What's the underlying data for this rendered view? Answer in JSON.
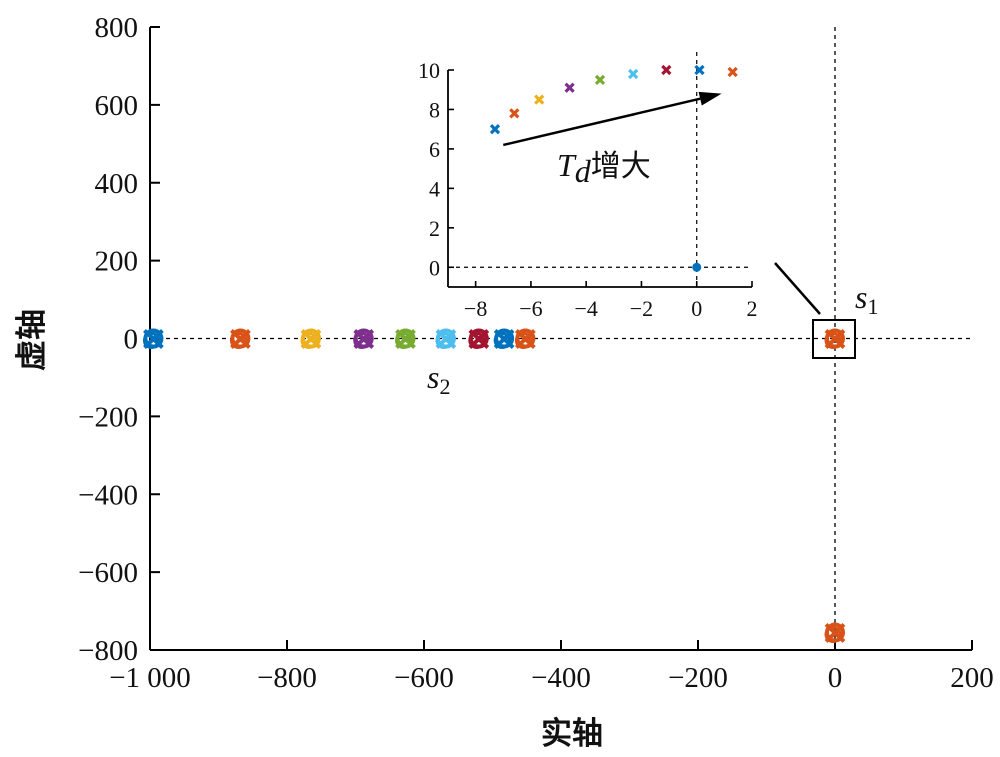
{
  "chart_data": {
    "type": "scatter",
    "xlabel": "实轴",
    "ylabel": "虚轴",
    "xlim": [
      -1000,
      200
    ],
    "ylim": [
      -800,
      800
    ],
    "xticks": [
      -1000,
      -800,
      -600,
      -400,
      -200,
      0,
      200
    ],
    "xtick_labels": [
      "−1 000",
      "−800",
      "−600",
      "−400",
      "−200",
      "0",
      "200"
    ],
    "yticks": [
      800,
      600,
      400,
      200,
      0,
      -200,
      -400,
      -600,
      -800
    ],
    "ytick_labels": [
      "800",
      "600",
      "400",
      "200",
      "0",
      "−200",
      "−400",
      "−600",
      "−800"
    ],
    "reference_lines": {
      "y": 0,
      "x": 0
    },
    "clusters": [
      {
        "x": -995,
        "y": 0,
        "color": "#0072BD"
      },
      {
        "x": -868,
        "y": 0,
        "color": "#D95319"
      },
      {
        "x": -765,
        "y": 0,
        "color": "#EDB120"
      },
      {
        "x": -688,
        "y": 0,
        "color": "#7E2F8E"
      },
      {
        "x": -627,
        "y": 0,
        "color": "#77AC30"
      },
      {
        "x": -568,
        "y": 0,
        "color": "#4DBEEE"
      },
      {
        "x": -520,
        "y": 0,
        "color": "#A2142F"
      },
      {
        "x": -483,
        "y": 0,
        "color": "#0072BD"
      },
      {
        "x": -452,
        "y": 0,
        "color": "#D95319"
      },
      {
        "x": 0,
        "y": 0,
        "color": "#D95319"
      },
      {
        "x": 0,
        "y": -755,
        "color": "#D95319"
      }
    ],
    "annotations": {
      "s1": {
        "text": "s",
        "sub": "1"
      },
      "s2": {
        "text": "s",
        "sub": "2"
      }
    },
    "inset": {
      "xlim": [
        -9,
        2
      ],
      "ylim": [
        -1,
        10
      ],
      "xticks": [
        -8,
        -6,
        -4,
        -2,
        0,
        2
      ],
      "xtick_labels": [
        "−8",
        "−6",
        "−4",
        "−2",
        "0",
        "2"
      ],
      "yticks": [
        0,
        2,
        4,
        6,
        8,
        10
      ],
      "ytick_labels": [
        "0",
        "2",
        "4",
        "6",
        "8",
        "10"
      ],
      "points": [
        {
          "x": -7.3,
          "y": 7.0,
          "color": "#0072BD",
          "marker": "x"
        },
        {
          "x": -6.6,
          "y": 7.8,
          "color": "#D95319",
          "marker": "x"
        },
        {
          "x": -5.7,
          "y": 8.5,
          "color": "#EDB120",
          "marker": "x"
        },
        {
          "x": -4.6,
          "y": 9.1,
          "color": "#7E2F8E",
          "marker": "x"
        },
        {
          "x": -3.5,
          "y": 9.5,
          "color": "#77AC30",
          "marker": "x"
        },
        {
          "x": -2.3,
          "y": 9.8,
          "color": "#4DBEEE",
          "marker": "x"
        },
        {
          "x": -1.1,
          "y": 10.0,
          "color": "#A2142F",
          "marker": "x"
        },
        {
          "x": 0.1,
          "y": 10.0,
          "color": "#0072BD",
          "marker": "x"
        },
        {
          "x": 1.3,
          "y": 9.9,
          "color": "#D95319",
          "marker": "x"
        },
        {
          "x": 0.0,
          "y": 0.0,
          "color": "#0072BD",
          "marker": "dot"
        }
      ],
      "arrow": {
        "from": [
          -7.0,
          6.2
        ],
        "to": [
          0.9,
          8.8
        ]
      },
      "label": {
        "main": "T",
        "sub": "d",
        "suffix": "增大"
      }
    }
  }
}
